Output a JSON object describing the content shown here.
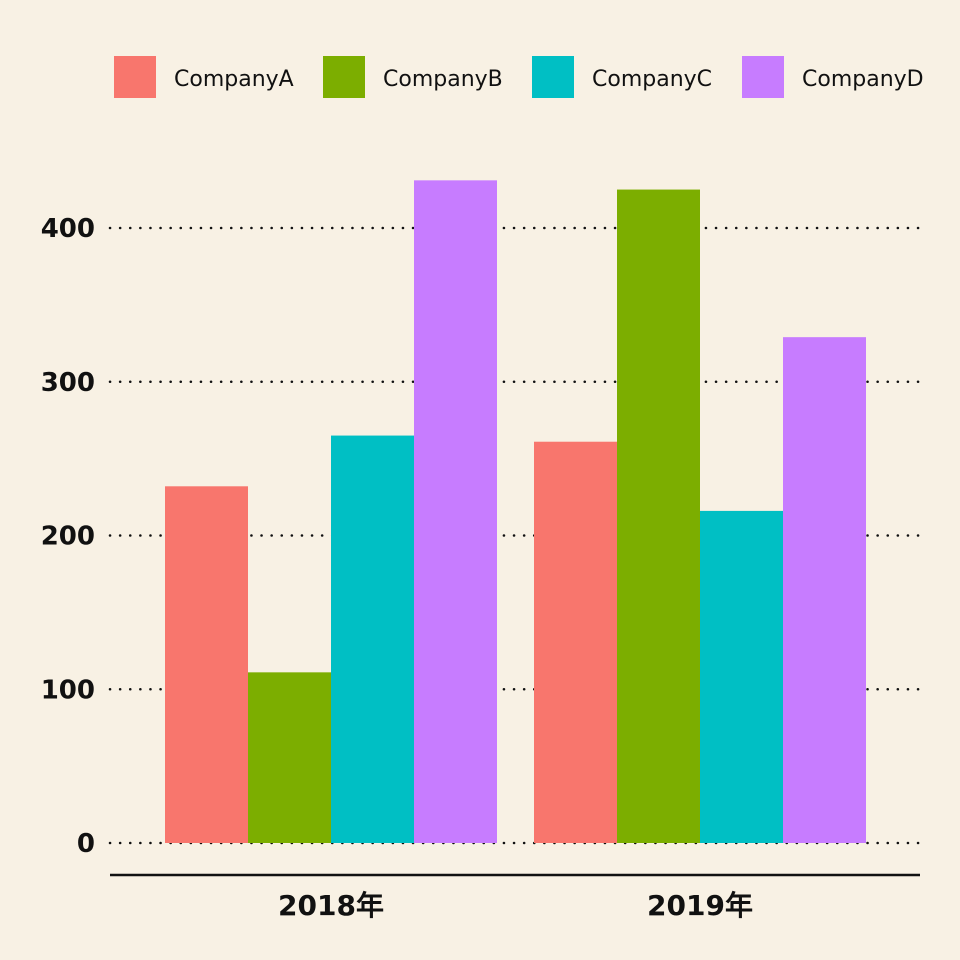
{
  "chart_data": {
    "type": "bar",
    "title": "",
    "xlabel": "",
    "ylabel": "",
    "categories": [
      "2018年",
      "2019年"
    ],
    "series": [
      {
        "name": "CompanyA",
        "color": "#f8766d",
        "values": [
          232,
          261
        ]
      },
      {
        "name": "CompanyB",
        "color": "#7cae00",
        "values": [
          111,
          425
        ]
      },
      {
        "name": "CompanyC",
        "color": "#00bfc4",
        "values": [
          265,
          216
        ]
      },
      {
        "name": "CompanyD",
        "color": "#c77cff",
        "values": [
          431,
          329
        ]
      }
    ],
    "ylim": [
      0,
      450
    ],
    "yticks": [
      0,
      100,
      200,
      300,
      400
    ],
    "ytick_labels": [
      "0",
      "100",
      "200",
      "300",
      "400"
    ],
    "grid": "horizontal-dotted",
    "legend_position": "top"
  }
}
